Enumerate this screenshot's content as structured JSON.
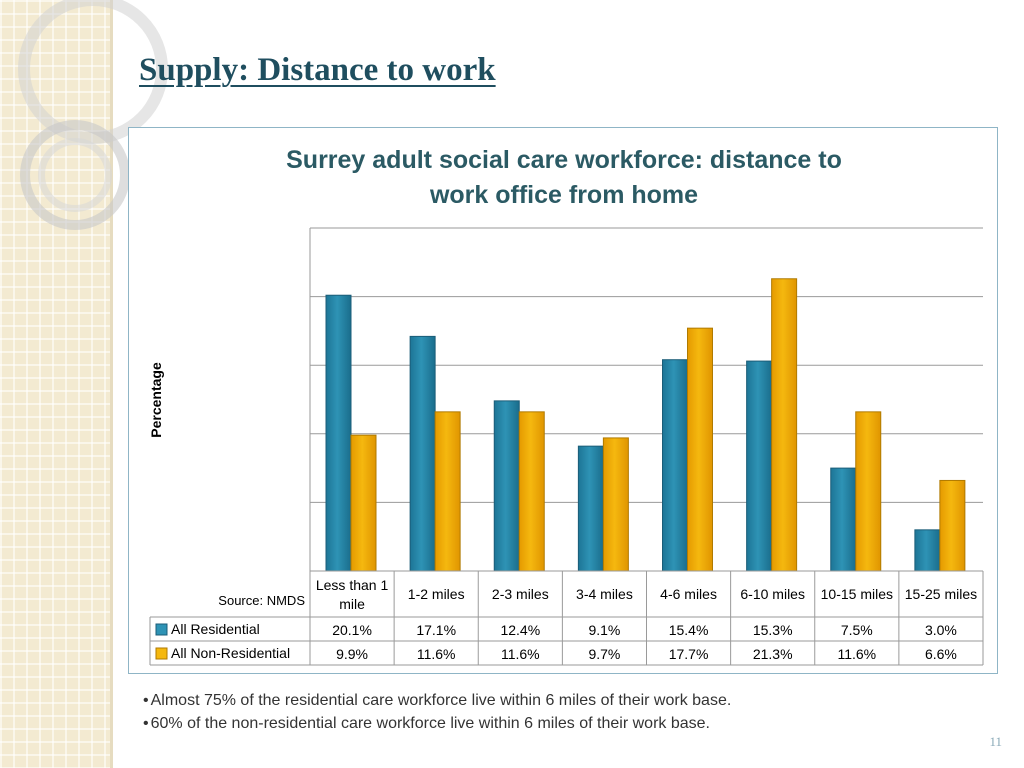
{
  "slide": {
    "title": "Supply: Distance to work",
    "bullets": [
      "Almost 75% of the residential care workforce live within 6 miles of their work base.",
      "60% of the non-residential care workforce live within 6 miles of their work base."
    ],
    "page_number": "11"
  },
  "colors": {
    "residential": "#2e93b5",
    "non_residential": "#f5b80f",
    "title": "#1f4e5f",
    "chart_title": "#2b5a64"
  },
  "chart_data": {
    "type": "bar",
    "title_lines": [
      "Surrey adult social care workforce: distance to",
      "work office from home"
    ],
    "ylabel": "Percentage",
    "xlabel": "",
    "ylim": [
      0,
      25
    ],
    "grid": true,
    "y_tick_labels_shown": false,
    "categories": [
      "Less than 1 mile",
      "1-2 miles",
      "2-3 miles",
      "3-4 miles",
      "4-6 miles",
      "6-10 miles",
      "10-15 miles",
      "15-25 miles"
    ],
    "series": [
      {
        "name": "All Residential",
        "values": [
          20.1,
          17.1,
          12.4,
          9.1,
          15.4,
          15.3,
          7.5,
          3.0
        ],
        "labels": [
          "20.1%",
          "17.1%",
          "12.4%",
          "9.1%",
          "15.4%",
          "15.3%",
          "7.5%",
          "3.0%"
        ]
      },
      {
        "name": "All Non-Residential",
        "values": [
          9.9,
          11.6,
          11.6,
          9.7,
          17.7,
          21.3,
          11.6,
          6.6
        ],
        "labels": [
          "9.9%",
          "11.6%",
          "11.6%",
          "9.7%",
          "17.7%",
          "21.3%",
          "11.6%",
          "6.6%"
        ]
      }
    ],
    "source": "Source: NMDS",
    "legend": "data table below chart"
  }
}
